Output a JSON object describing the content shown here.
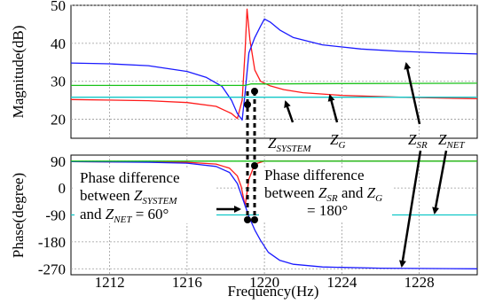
{
  "chart_data": [
    {
      "id": "magnitude",
      "type": "line",
      "ylabel": "Magnitude(dB)",
      "xlabel": "",
      "xlim": [
        1210,
        1231
      ],
      "ylim": [
        15,
        50
      ],
      "yticks": [
        20,
        30,
        40,
        50
      ],
      "xticks": [
        1212,
        1216,
        1220,
        1224,
        1228
      ],
      "grid": true,
      "colors": {
        "red": "#ff1a1a",
        "blue": "#1a1aff",
        "green": "#19c219",
        "cyan": "#10c8c8"
      },
      "series": [
        {
          "color": "red",
          "x": [
            1210,
            1214,
            1216,
            1217.5,
            1218.3,
            1218.6,
            1218.85,
            1219.0,
            1219.1,
            1219.25,
            1219.5,
            1219.8,
            1220.3,
            1221,
            1222,
            1224,
            1227,
            1231
          ],
          "y": [
            25.2,
            24.9,
            24.4,
            23.4,
            21.5,
            20.2,
            25,
            38,
            49,
            41,
            33,
            30,
            28.8,
            27.8,
            27.0,
            26.3,
            25.8,
            25.4
          ]
        },
        {
          "color": "blue",
          "x": [
            1210,
            1212,
            1214,
            1216,
            1217,
            1217.8,
            1218.3,
            1218.6,
            1218.85,
            1219.0,
            1219.2,
            1219.5,
            1219.8,
            1220.0,
            1220.3,
            1220.8,
            1221.5,
            1223,
            1225,
            1227,
            1229,
            1231
          ],
          "y": [
            34.8,
            34.6,
            34.1,
            32.6,
            31.0,
            28.7,
            25.0,
            21.5,
            19.8,
            27,
            37.5,
            41.5,
            44.5,
            46.4,
            45.6,
            43.5,
            41.5,
            39.6,
            38.5,
            37.9,
            37.5,
            37.2
          ]
        },
        {
          "color": "green",
          "x": [
            1210,
            1216,
            1219,
            1219.3,
            1220,
            1224,
            1231
          ],
          "y": [
            28.9,
            28.9,
            28.9,
            29.3,
            29.3,
            29.4,
            29.5
          ]
        },
        {
          "color": "cyan",
          "x": [
            1210,
            1231
          ],
          "y": [
            25.8,
            25.8
          ]
        }
      ]
    },
    {
      "id": "phase",
      "type": "line",
      "ylabel": "Phase(degree)",
      "xlabel": "Frequency(Hz)",
      "xlim": [
        1210,
        1231
      ],
      "ylim": [
        -290,
        110
      ],
      "yticks": [
        90,
        0,
        -90,
        -180,
        -270
      ],
      "ytick_labels": [
        "90",
        "0",
        "-90",
        "-180",
        "-270"
      ],
      "xticks": [
        1212,
        1216,
        1220,
        1224,
        1228
      ],
      "grid": true,
      "series": [
        {
          "color": "red",
          "x": [
            1210,
            1216,
            1217.5,
            1218.2,
            1218.6,
            1218.8,
            1219.0,
            1219.2,
            1219.5,
            1220,
            1231
          ],
          "y": [
            88,
            86,
            80,
            66,
            40,
            5,
            -60,
            30,
            80,
            90,
            90
          ]
        },
        {
          "color": "blue",
          "x": [
            1210,
            1214,
            1216,
            1217.5,
            1218.2,
            1218.6,
            1218.9,
            1219.2,
            1219.5,
            1219.8,
            1220.2,
            1220.8,
            1221.5,
            1223,
            1226,
            1231
          ],
          "y": [
            88,
            86,
            83,
            72,
            52,
            15,
            -40,
            -95,
            -140,
            -175,
            -215,
            -242,
            -255,
            -264,
            -268,
            -270
          ]
        },
        {
          "color": "green",
          "x": [
            1210,
            1231
          ],
          "y": [
            90,
            90
          ]
        },
        {
          "color": "cyan",
          "x": [
            1210,
            1231
          ],
          "y": [
            -90,
            -90
          ]
        }
      ]
    }
  ],
  "annotations": {
    "z_system": {
      "main": "Z",
      "sub": "SYSTEM"
    },
    "z_g": {
      "main": "Z",
      "sub": "G"
    },
    "z_sr": {
      "main": "Z",
      "sub": "SR"
    },
    "z_net": {
      "main": "Z",
      "sub": "NET"
    },
    "left_note": {
      "line1": "Phase difference",
      "line2_pre": "between ",
      "line3_pre": "and ",
      "line3_post": " = 60°"
    },
    "right_note": {
      "line1": "Phase difference",
      "line2_pre": "between ",
      "line2_mid": " and ",
      "line3": "= 180°"
    }
  }
}
